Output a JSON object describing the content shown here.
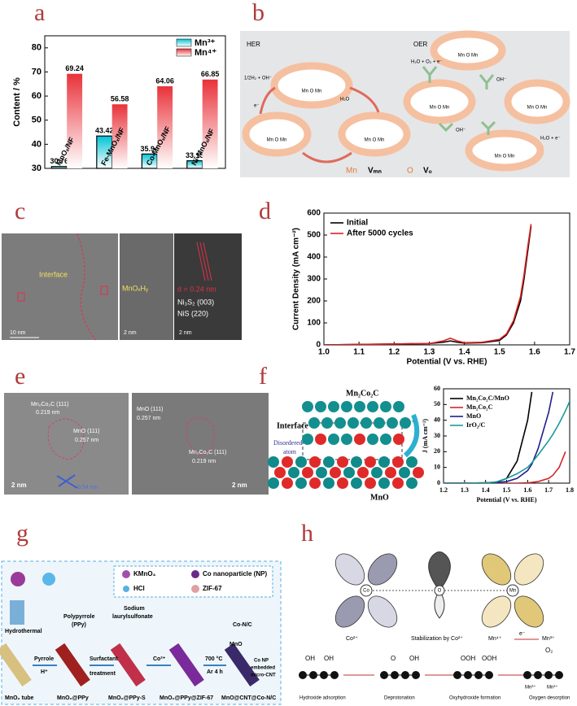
{
  "panels": {
    "labels": [
      "a",
      "b",
      "c",
      "d",
      "e",
      "f",
      "g",
      "h"
    ],
    "b": {
      "her": "HER",
      "oer": "OER",
      "site": "Mn  O  Mn",
      "h2o": "H₂O",
      "half_h2": "1/2H₂ + OH⁻",
      "e": "e⁻",
      "oh": "OH⁻",
      "oer_in": "H₂O + O₂ + e⁻",
      "oer_in2": "H₂O + e⁻",
      "legend_mn": "Mn",
      "legend_vmn": "Vₘₙ",
      "legend_o": "O",
      "legend_vo": "Vₒ"
    },
    "c": {
      "interface": "Interface",
      "scale1": "10 nm",
      "mnoxhy": "MnOₓHᵧ",
      "scale2": "2 nm",
      "d": "d = 0.24 nm",
      "ni3s2": "Ni₃S₂  (003)",
      "nis": "NiS  (220)"
    },
    "e": {
      "mcc": "Mn₂Co₂C (111)",
      "d219": "0.219 nm",
      "mno": "MnO (111)",
      "d257": "0.257 nm",
      "d54": "0.54 nm",
      "scale": "2 nm"
    },
    "f": {
      "top": "Mn₂Co₂C",
      "interface": "Interface",
      "disordered": "Disordered",
      "atom": "atom",
      "bottom": "MnO",
      "e": "e⁻"
    },
    "g": {
      "kmno4": "KMnO₄",
      "np": "Co nanoparticle (NP)",
      "hcl": "HCl",
      "zif": "ZIF-67",
      "hydrothermal": "Hydrothermal",
      "ppy": "Polypyrrole",
      "ppy2": "(PPy)",
      "sodium": "Sodium",
      "laury": "laurylsulfonate",
      "pyrrole": "Pyrrole",
      "hplus": "H⁺",
      "surf": "Surfactant",
      "treat": "treatment",
      "co2": "Co²⁺",
      "temp": "700 °C",
      "ar": "Ar 4 h",
      "mno": "MnO",
      "conc": "Co-N/C",
      "conp": "Co NP",
      "embedded": "embedded",
      "cnt": "micro-CNT",
      "s1": "MnO₂ tube",
      "s2": "MnO₂@PPy",
      "s3": "MnO₂@PPy-S",
      "s4": "MnO₂@PPy@ZIF-67",
      "s5": "MnO@CNT@Co-N/C"
    },
    "h": {
      "co": "Co",
      "o": "O",
      "mn": "Mn",
      "co2": "Co²⁺",
      "stab": "Stabilization by Co²⁺",
      "mn4": "Mn⁴⁺",
      "e": "e⁻",
      "mn3": "Mn³⁺",
      "oh": "OH",
      "ooh": "OOH",
      "o2": "O₂",
      "step1": "Hydroxide adsorption",
      "step2": "Deprotonation",
      "step3": "Oxyhydroxide formation",
      "step4": "Oxygen desorption"
    }
  },
  "chart_data": [
    {
      "type": "bar",
      "ylabel": "Content / %",
      "categories": [
        "MnOₓ/NF",
        "Fe-MnOₓ/NF",
        "Co-MnOₓ/NF",
        "Ni-MnOₓ/NF"
      ],
      "series": [
        {
          "name": "Mn³⁺",
          "color": "#00c3d6",
          "values": [
            30.76,
            43.42,
            35.94,
            33.15
          ]
        },
        {
          "name": "Mn⁴⁺",
          "color": "#e8323a",
          "values": [
            69.24,
            56.58,
            64.06,
            66.85
          ]
        }
      ],
      "ylim": [
        30,
        85
      ],
      "yticks": [
        30,
        40,
        50,
        60,
        70,
        80
      ],
      "legend": "upper right"
    },
    {
      "type": "line",
      "xlabel": "Potential (V vs. RHE)",
      "ylabel": "Current Density (mA cm⁻²)",
      "x": [
        1.0,
        1.1,
        1.2,
        1.3,
        1.34,
        1.36,
        1.38,
        1.4,
        1.45,
        1.5,
        1.52,
        1.54,
        1.56,
        1.57,
        1.58,
        1.59
      ],
      "series": [
        {
          "name": "Initial",
          "color": "#000000",
          "values": [
            0,
            2,
            4,
            6,
            12,
            18,
            12,
            8,
            10,
            20,
            45,
            100,
            200,
            300,
            420,
            540
          ]
        },
        {
          "name": "After 5000 cycles",
          "color": "#e02020",
          "values": [
            0,
            2,
            4,
            6,
            18,
            30,
            18,
            10,
            12,
            25,
            50,
            110,
            220,
            320,
            440,
            550
          ]
        }
      ],
      "xlim": [
        1.0,
        1.7
      ],
      "xticks": [
        {
          "value": 1.0,
          "label": "1.0"
        },
        1.1,
        1.2,
        1.3,
        1.4,
        1.5,
        1.6,
        1.7
      ],
      "ylim": [
        0,
        600
      ],
      "yticks": [
        0,
        100,
        200,
        300,
        400,
        500,
        600
      ],
      "legend": "upper left"
    },
    {
      "type": "line",
      "xlabel": "Potential (V vs. RHE)",
      "ylabel": "J (mA cm⁻²)",
      "x": [
        1.2,
        1.3,
        1.4,
        1.45,
        1.5,
        1.55,
        1.6,
        1.62,
        1.65,
        1.7,
        1.72,
        1.75,
        1.78,
        1.8
      ],
      "series": [
        {
          "name": "Mn₂Co₂C/MnO",
          "color": "#000000",
          "values": [
            0,
            0,
            0.2,
            0.5,
            3,
            14,
            40,
            58,
            null,
            null,
            null,
            null,
            null,
            null
          ]
        },
        {
          "name": "Mn₂Co₂C",
          "color": "#d62728",
          "values": [
            0,
            0,
            0,
            0,
            0,
            0,
            0.2,
            0.5,
            1,
            3,
            5,
            10,
            20,
            null
          ]
        },
        {
          "name": "MnO",
          "color": "#1f1f8f",
          "values": [
            0,
            0,
            0,
            0.3,
            1,
            3,
            8,
            12,
            22,
            45,
            58,
            null,
            null,
            null
          ]
        },
        {
          "name": "IrO₂/C",
          "color": "#1a9a9a",
          "values": [
            0,
            0,
            0.2,
            0.8,
            3,
            6,
            10,
            13,
            18,
            27,
            31,
            38,
            46,
            52
          ]
        }
      ],
      "xlim": [
        1.2,
        1.8
      ],
      "xticks": [
        1.2,
        1.3,
        1.4,
        1.5,
        1.6,
        1.7,
        1.8
      ],
      "ylim": [
        0,
        60
      ],
      "yticks": [
        0,
        10,
        20,
        30,
        40,
        50,
        60
      ],
      "legend": "upper left"
    }
  ]
}
